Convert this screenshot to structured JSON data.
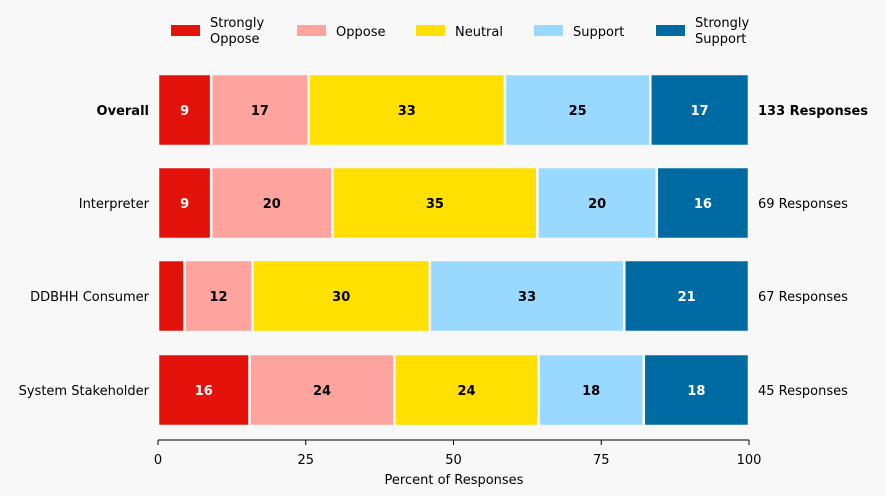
{
  "chart_data": {
    "type": "bar",
    "orientation": "horizontal",
    "stacked": true,
    "title": "",
    "xlabel": "Percent of Responses",
    "ylabel": "",
    "xlim": [
      0,
      100
    ],
    "xticks": [
      "0",
      "25",
      "50",
      "75",
      "100"
    ],
    "xtick_values": [
      0,
      25,
      50,
      75,
      100
    ],
    "legend_position": "top",
    "categories": [
      "Overall",
      "Interpreter",
      "DDBHH Consumer",
      "System Stakeholder"
    ],
    "response_labels": [
      "133 Responses",
      "69 Responses",
      "67 Responses",
      "45 Responses"
    ],
    "series": [
      {
        "name": "Strongly Oppose",
        "legend_lines": [
          "Strongly",
          "Oppose"
        ],
        "color": "#e3120b",
        "label_color": "#ffffff",
        "values": [
          9,
          9,
          4.5,
          15.5
        ],
        "labels": [
          "9",
          "9",
          "",
          "16"
        ]
      },
      {
        "name": "Oppose",
        "legend_lines": [
          "Oppose"
        ],
        "color": "#ffa39e",
        "label_color": "#000000",
        "values": [
          16.5,
          20.5,
          11.5,
          24.5
        ],
        "labels": [
          "17",
          "20",
          "12",
          "24"
        ]
      },
      {
        "name": "Neutral",
        "legend_lines": [
          "Neutral"
        ],
        "color": "#ffe000",
        "label_color": "#000000",
        "values": [
          33.2,
          34.7,
          30.0,
          24.4
        ],
        "labels": [
          "33",
          "35",
          "30",
          "24"
        ]
      },
      {
        "name": "Support",
        "legend_lines": [
          "Support"
        ],
        "color": "#9ad9ff",
        "label_color": "#000000",
        "values": [
          24.6,
          20.2,
          32.9,
          17.8
        ],
        "labels": [
          "25",
          "20",
          "33",
          "18"
        ]
      },
      {
        "name": "Strongly Support",
        "legend_lines": [
          "Strongly",
          "Support"
        ],
        "color": "#006ba2",
        "label_color": "#ffffff",
        "values": [
          16.7,
          15.6,
          21.1,
          17.8
        ],
        "labels": [
          "17",
          "16",
          "21",
          "18"
        ]
      }
    ]
  }
}
